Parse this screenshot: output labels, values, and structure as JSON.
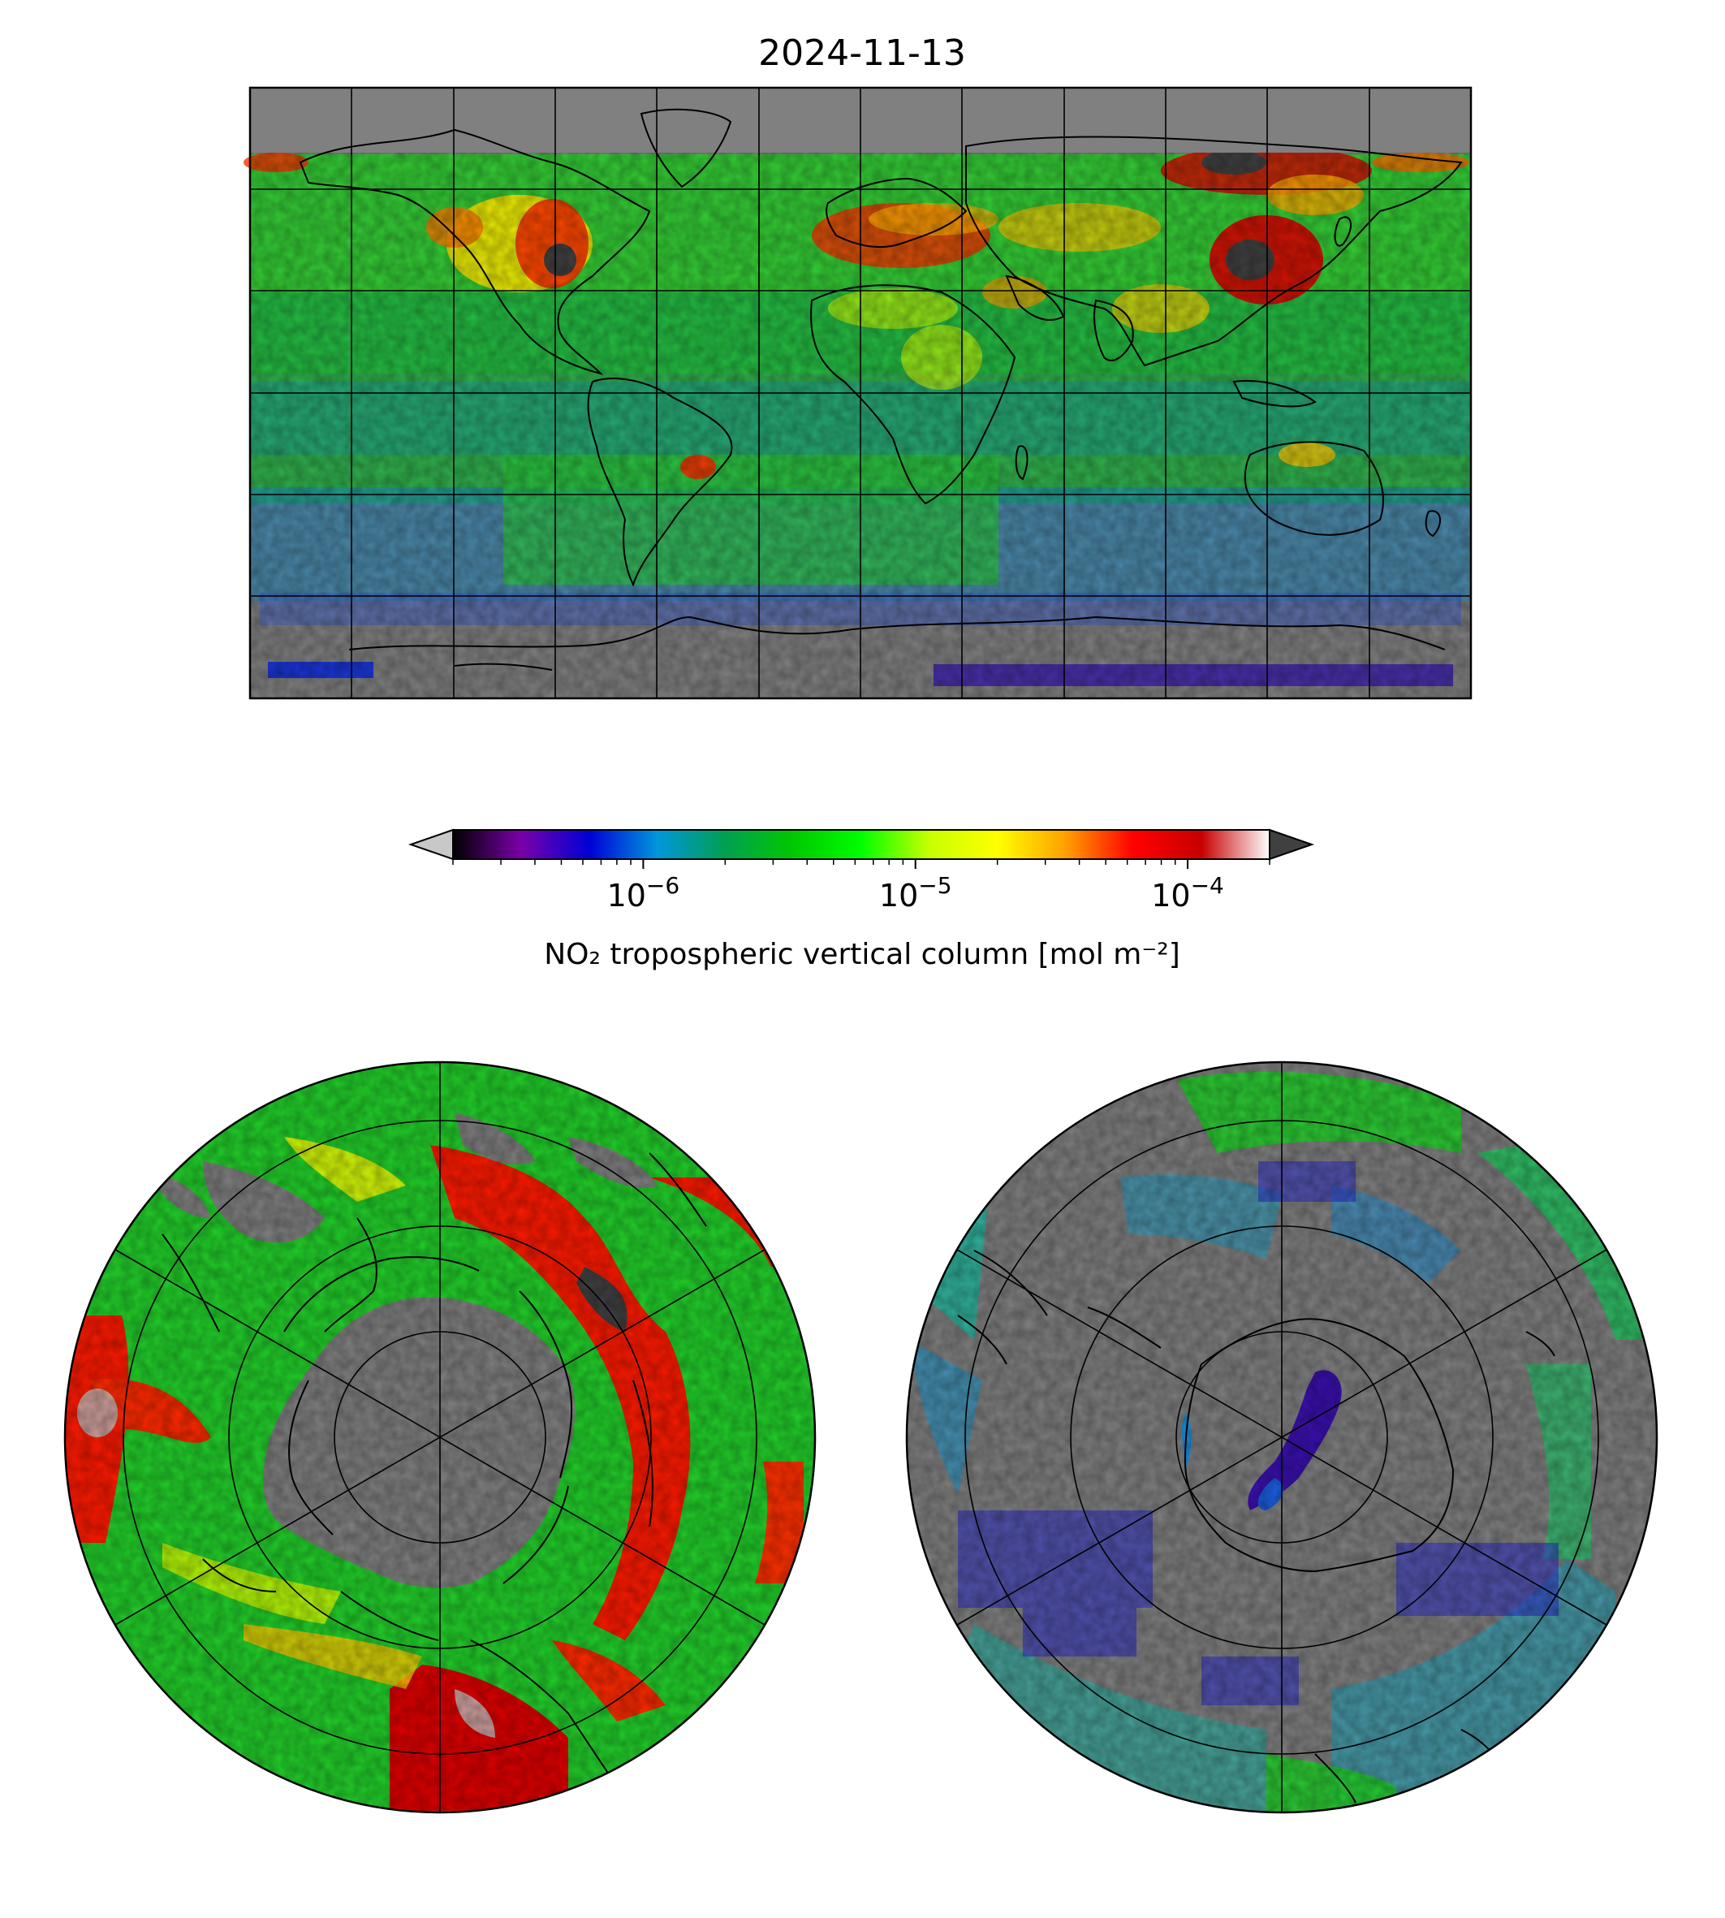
{
  "title": "2024-11-13",
  "colorbar": {
    "label": "NO₂ tropospheric vertical column [mol m⁻²]",
    "scale": "log",
    "range": [
      2e-07,
      0.0002
    ],
    "extend": "both",
    "ticks": [
      {
        "value": 1e-06,
        "base": "10",
        "exp": "−6"
      },
      {
        "value": 1e-05,
        "base": "10",
        "exp": "−5"
      },
      {
        "value": 0.0001,
        "base": "10",
        "exp": "−4"
      }
    ],
    "colors": [
      "#000000",
      "#7a00a8",
      "#0000d6",
      "#0096dc",
      "#00a050",
      "#00c800",
      "#00ff00",
      "#c8ff00",
      "#ffff00",
      "#ffa000",
      "#ff0000",
      "#c80000",
      "#ffffff"
    ],
    "under_color": "#c8c8c8",
    "over_color": "#404040",
    "nodata_color": "#808080"
  },
  "maps": [
    {
      "name": "global",
      "projection": "plate-carree"
    },
    {
      "name": "north-polar",
      "projection": "north-polar-stereographic"
    },
    {
      "name": "south-polar",
      "projection": "south-polar-stereographic"
    }
  ]
}
